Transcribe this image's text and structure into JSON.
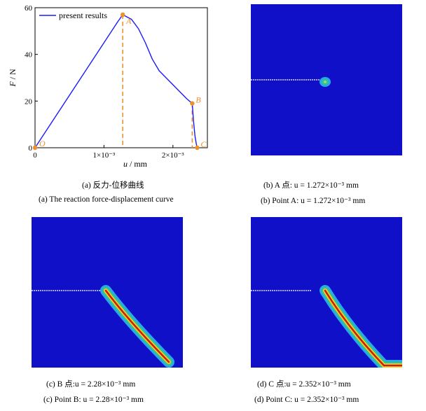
{
  "chart_data": [
    {
      "type": "line",
      "series": [
        {
          "name": "present results",
          "color": "#1a1aff",
          "x": [
            0,
            0.0002,
            0.0004,
            0.0006,
            0.0008,
            0.001,
            0.0012,
            0.001272,
            0.0014,
            0.0015,
            0.0016,
            0.0017,
            0.0018,
            0.0019,
            0.002,
            0.0021,
            0.0022,
            0.00228,
            0.0023,
            0.00232,
            0.00234,
            0.002352
          ],
          "y": [
            0,
            9,
            18,
            27,
            36,
            45,
            54,
            57,
            55,
            51,
            45,
            38,
            33,
            30,
            27,
            24,
            21,
            19,
            11,
            5,
            1.5,
            0
          ]
        }
      ],
      "points": [
        {
          "label": "O",
          "x": 0,
          "y": 0
        },
        {
          "label": "A",
          "x": 0.001272,
          "y": 57
        },
        {
          "label": "B",
          "x": 0.00228,
          "y": 19
        },
        {
          "label": "C",
          "x": 0.002352,
          "y": 0
        }
      ],
      "xlabel_var": "u",
      "xlabel_unit": " / mm",
      "ylabel_var": "F",
      "ylabel_unit": " / N",
      "xlim": [
        0,
        0.0025
      ],
      "ylim": [
        0,
        60
      ],
      "xticks": [
        0,
        0.001,
        0.002
      ],
      "xtick_labels": [
        "0",
        "1×10⁻³",
        "2×10⁻³"
      ],
      "yticks": [
        0,
        20,
        40,
        60
      ],
      "ytick_labels": [
        "0",
        "20",
        "40",
        "60"
      ],
      "legend_position": "top-left",
      "grid": false,
      "marker_color": "#f0902a"
    }
  ],
  "captions": {
    "a_cn": "(a) 反力-位移曲线",
    "a_en": "(a) The reaction force-displacement curve",
    "b_cn": "(b) A 点: u = 1.272×10⁻³ mm",
    "b_en": "(b) Point A: u = 1.272×10⁻³ mm",
    "c_cn": "(c) B 点:u = 2.28×10⁻³ mm",
    "c_en": "(c) Point B: u = 2.28×10⁻³ mm",
    "d_cn": "(d) C 点:u = 2.352×10⁻³ mm",
    "d_en": "(d) Point C: u = 2.352×10⁻³ mm"
  },
  "colors": {
    "field_background": "#1010c8",
    "crack_core": "#c81e00",
    "crack_mid": "#f0d020",
    "crack_outer": "#30c0a0",
    "notch": "#ffffff"
  }
}
